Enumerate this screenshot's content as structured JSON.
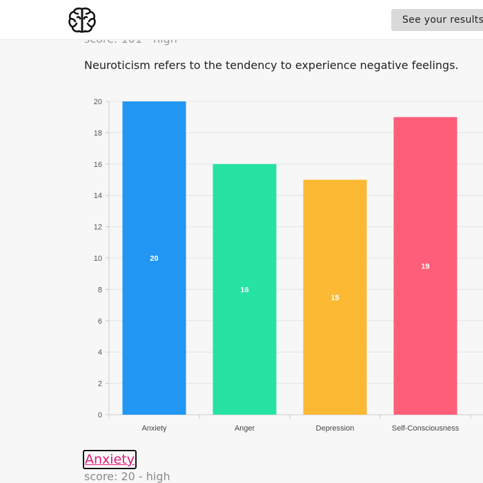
{
  "header": {
    "logo_icon": "brain-icon",
    "results_button_label": "See your results"
  },
  "section": {
    "score_text": "score: 101 - high",
    "description": "Neuroticism refers to the tendency to experience negative feelings."
  },
  "chart_data": {
    "type": "bar",
    "categories": [
      "Anxiety",
      "Anger",
      "Depression",
      "Self-Consciousness"
    ],
    "values": [
      20,
      16,
      15,
      19
    ],
    "colors": [
      "#2196f3",
      "#26e2a3",
      "#fbb934",
      "#ff5e78"
    ],
    "ylim": [
      0,
      20
    ],
    "yticks": [
      0,
      2,
      4,
      6,
      8,
      10,
      12,
      14,
      16,
      18,
      20
    ],
    "grid": true,
    "title": "",
    "xlabel": "",
    "ylabel": ""
  },
  "subsection": {
    "heading": "Anxiety",
    "score_text": "score: 20 - high"
  }
}
